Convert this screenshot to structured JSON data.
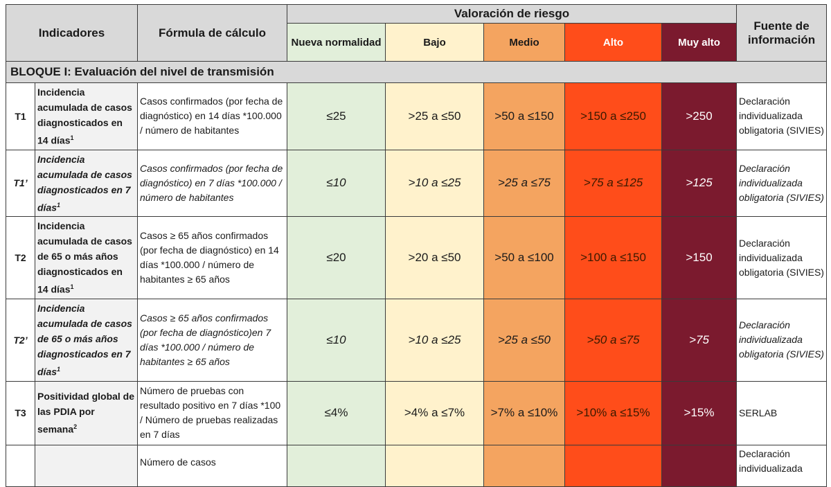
{
  "header": {
    "indicadores": "Indicadores",
    "formula": "Fórmula de cálculo",
    "valoracion": "Valoración de riesgo",
    "fuente": "Fuente de información",
    "levels": {
      "nueva": "Nueva normalidad",
      "bajo": "Bajo",
      "medio": "Medio",
      "alto": "Alto",
      "muy_alto": "Muy alto"
    }
  },
  "block": {
    "title": "BLOQUE I: Evaluación del nivel de transmisión"
  },
  "rows": [
    {
      "code": "T1",
      "indicator": "Incidencia acumulada de casos diagnosticados en 14 días",
      "sup": "1",
      "formula": "Casos confirmados (por fecha de diagnóstico) en 14 días *100.000 / número de habitantes",
      "nueva": "≤25",
      "bajo": ">25 a ≤50",
      "medio": ">50 a ≤150",
      "alto": ">150 a ≤250",
      "muy_alto": ">250",
      "source": "Declaración individualizada obligatoria (SIVIES)"
    },
    {
      "code": "T1’",
      "indicator": "Incidencia acumulada de casos diagnosticados en 7 días",
      "sup": "1",
      "formula": "Casos confirmados (por fecha de diagnóstico) en 7 días *100.000 / número de habitantes",
      "nueva": "≤10",
      "bajo": ">10 a ≤25",
      "medio": ">25 a ≤75",
      "alto": ">75 a ≤125",
      "muy_alto": ">125",
      "source": "Declaración individualizada obligatoria (SIVIES)"
    },
    {
      "code": "T2",
      "indicator": "Incidencia acumulada de casos de 65 o más años diagnosticados en 14 días",
      "sup": "1",
      "formula": "Casos ≥ 65 años confirmados (por fecha de diagnóstico) en 14 días *100.000 / número de habitantes ≥ 65 años",
      "nueva": "≤20",
      "bajo": ">20 a ≤50",
      "medio": ">50 a ≤100",
      "alto": ">100 a ≤150",
      "muy_alto": ">150",
      "source": "Declaración individualizada obligatoria (SIVIES)"
    },
    {
      "code": "T2’",
      "indicator": "Incidencia acumulada de casos de 65 o más años diagnosticados en 7 días",
      "sup": "1",
      "formula": "Casos ≥ 65 años confirmados (por fecha de diagnóstico)en 7 días *100.000 / número de habitantes ≥ 65 años",
      "nueva": "≤10",
      "bajo": ">10 a ≤25",
      "medio": ">25 a ≤50",
      "alto": ">50 a ≤75",
      "muy_alto": ">75",
      "source": "Declaración individualizada obligatoria (SIVIES)"
    },
    {
      "code": "T3",
      "indicator": "Positividad global de las PDIA por semana",
      "sup": "2",
      "formula": "Número de pruebas con resultado positivo en 7 días *100 / Número de pruebas realizadas en 7 días",
      "nueva": "≤4%",
      "bajo": ">4% a ≤7%",
      "medio": ">7% a ≤10%",
      "alto": ">10% a ≤15%",
      "muy_alto": ">15%",
      "source": "SERLAB"
    },
    {
      "code": "",
      "indicator": "",
      "sup": "",
      "formula": "Número de casos",
      "nueva": "",
      "bajo": "",
      "medio": "",
      "alto": "",
      "muy_alto": "",
      "source": "Declaración individualizada"
    }
  ]
}
